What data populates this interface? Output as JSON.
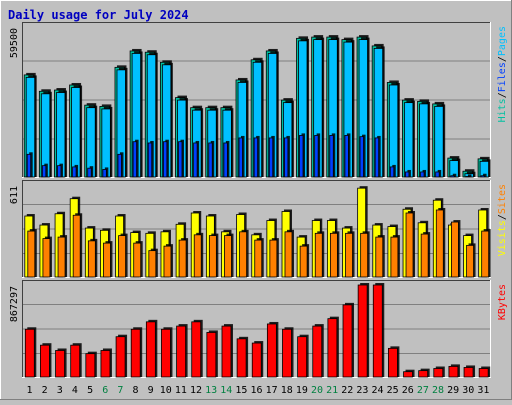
{
  "chart_data": {
    "type": "bar",
    "title": "Daily usage for July 2024",
    "categories": [
      "1",
      "2",
      "3",
      "4",
      "5",
      "6",
      "7",
      "8",
      "9",
      "10",
      "11",
      "12",
      "13",
      "14",
      "15",
      "16",
      "17",
      "18",
      "19",
      "20",
      "21",
      "22",
      "23",
      "24",
      "25",
      "26",
      "27",
      "28",
      "29",
      "30",
      "31"
    ],
    "weekend_days": [
      "6",
      "7",
      "13",
      "14",
      "20",
      "21",
      "27",
      "28"
    ],
    "panels": [
      {
        "id": "top",
        "max_label": "59500",
        "ymax": 59500,
        "legend": [
          "Pages",
          "/",
          "Files",
          "/",
          "Hits"
        ],
        "series": [
          {
            "name": "Hits",
            "values": [
              40500,
              34000,
              34500,
              36500,
              28500,
              28000,
              43500,
              50000,
              49500,
              45500,
              31500,
              27500,
              27500,
              27500,
              38500,
              46500,
              50000,
              30500,
              55000,
              55500,
              55500,
              54500,
              55500,
              52000,
              37500,
              30500,
              30000,
              29000,
              7500,
              2300,
              7200
            ]
          },
          {
            "name": "Files",
            "values": [
              39500,
              33000,
              33500,
              35500,
              27500,
              27000,
              42500,
              49000,
              48500,
              44500,
              30500,
              26500,
              26500,
              26500,
              37500,
              45500,
              49000,
              29500,
              54000,
              54500,
              54500,
              53500,
              54500,
              51000,
              36500,
              29500,
              29000,
              28000,
              6500,
              1300,
              6200
            ]
          },
          {
            "name": "Pages",
            "values": [
              9000,
              4500,
              4500,
              4000,
              3500,
              3000,
              9000,
              14000,
              13500,
              14000,
              14000,
              13500,
              13500,
              13500,
              15500,
              15500,
              15500,
              15500,
              16500,
              16500,
              16500,
              16500,
              16000,
              15500,
              4000,
              2000,
              2000,
              2000,
              500,
              200,
              500
            ]
          }
        ]
      },
      {
        "id": "middle",
        "max_label": "611",
        "ymax": 611,
        "legend": [
          "Sites",
          "/",
          "Visits"
        ],
        "series": [
          {
            "name": "Visits",
            "values": [
              405,
              345,
              420,
              520,
              325,
              310,
              405,
              295,
              290,
              300,
              350,
              425,
              405,
              300,
              415,
              280,
              375,
              435,
              265,
              375,
              375,
              325,
              590,
              345,
              335,
              450,
              360,
              510,
              345,
              275,
              445
            ]
          },
          {
            "name": "Sites",
            "values": [
              305,
              255,
              265,
              410,
              240,
              225,
              275,
              225,
              175,
              205,
              245,
              280,
              275,
              275,
              300,
              245,
              245,
              300,
              205,
              290,
              290,
              290,
              290,
              265,
              265,
              425,
              285,
              445,
              365,
              210,
              305
            ]
          }
        ]
      },
      {
        "id": "bottom",
        "max_label": "867297",
        "ymax": 867297,
        "legend": [
          "KBytes"
        ],
        "series": [
          {
            "name": "KBytes",
            "values": [
              450000,
              300000,
              250000,
              300000,
              220000,
              250000,
              380000,
              450000,
              520000,
              450000,
              480000,
              520000,
              420000,
              480000,
              360000,
              320000,
              500000,
              450000,
              380000,
              480000,
              550000,
              680000,
              867297,
              867297,
              270000,
              50000,
              60000,
              80000,
              100000,
              90000,
              80000
            ]
          }
        ]
      }
    ]
  },
  "colors": {
    "hits": "#00c0a0",
    "files": "#00c0ff",
    "pages": "#0040ff",
    "visits": "#ffff00",
    "sites": "#ff8000",
    "kbytes": "#ff0000",
    "title": "#0000c0",
    "weekend_label": "#008040",
    "weekday_label": "#000000"
  }
}
